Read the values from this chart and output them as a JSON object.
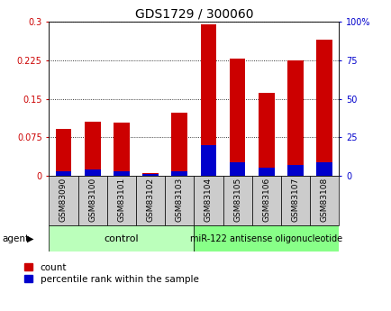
{
  "title": "GDS1729 / 300060",
  "categories": [
    "GSM83090",
    "GSM83100",
    "GSM83101",
    "GSM83102",
    "GSM83103",
    "GSM83104",
    "GSM83105",
    "GSM83106",
    "GSM83107",
    "GSM83108"
  ],
  "count_values": [
    0.092,
    0.105,
    0.104,
    0.005,
    0.122,
    0.295,
    0.228,
    0.162,
    0.225,
    0.265
  ],
  "percentile_values": [
    3,
    4,
    3,
    1,
    3,
    20,
    9,
    5,
    7,
    9
  ],
  "count_color": "#cc0000",
  "percentile_color": "#0000cc",
  "ylim_left": [
    0,
    0.3
  ],
  "ylim_right": [
    0,
    100
  ],
  "yticks_left": [
    0,
    0.075,
    0.15,
    0.225,
    0.3
  ],
  "yticks_right": [
    0,
    25,
    50,
    75,
    100
  ],
  "ytick_labels_left": [
    "0",
    "0.075",
    "0.15",
    "0.225",
    "0.3"
  ],
  "ytick_labels_right": [
    "0",
    "25",
    "50",
    "75",
    "100%"
  ],
  "background_color": "#ffffff",
  "bar_width": 0.55,
  "control_label": "control",
  "treatment_label": "miR-122 antisense oligonucleotide",
  "agent_label": "agent",
  "legend_count": "count",
  "legend_percentile": "percentile rank within the sample",
  "control_bg": "#bbffbb",
  "treatment_bg": "#88ff88",
  "xtick_bg": "#cccccc",
  "title_fontsize": 10
}
